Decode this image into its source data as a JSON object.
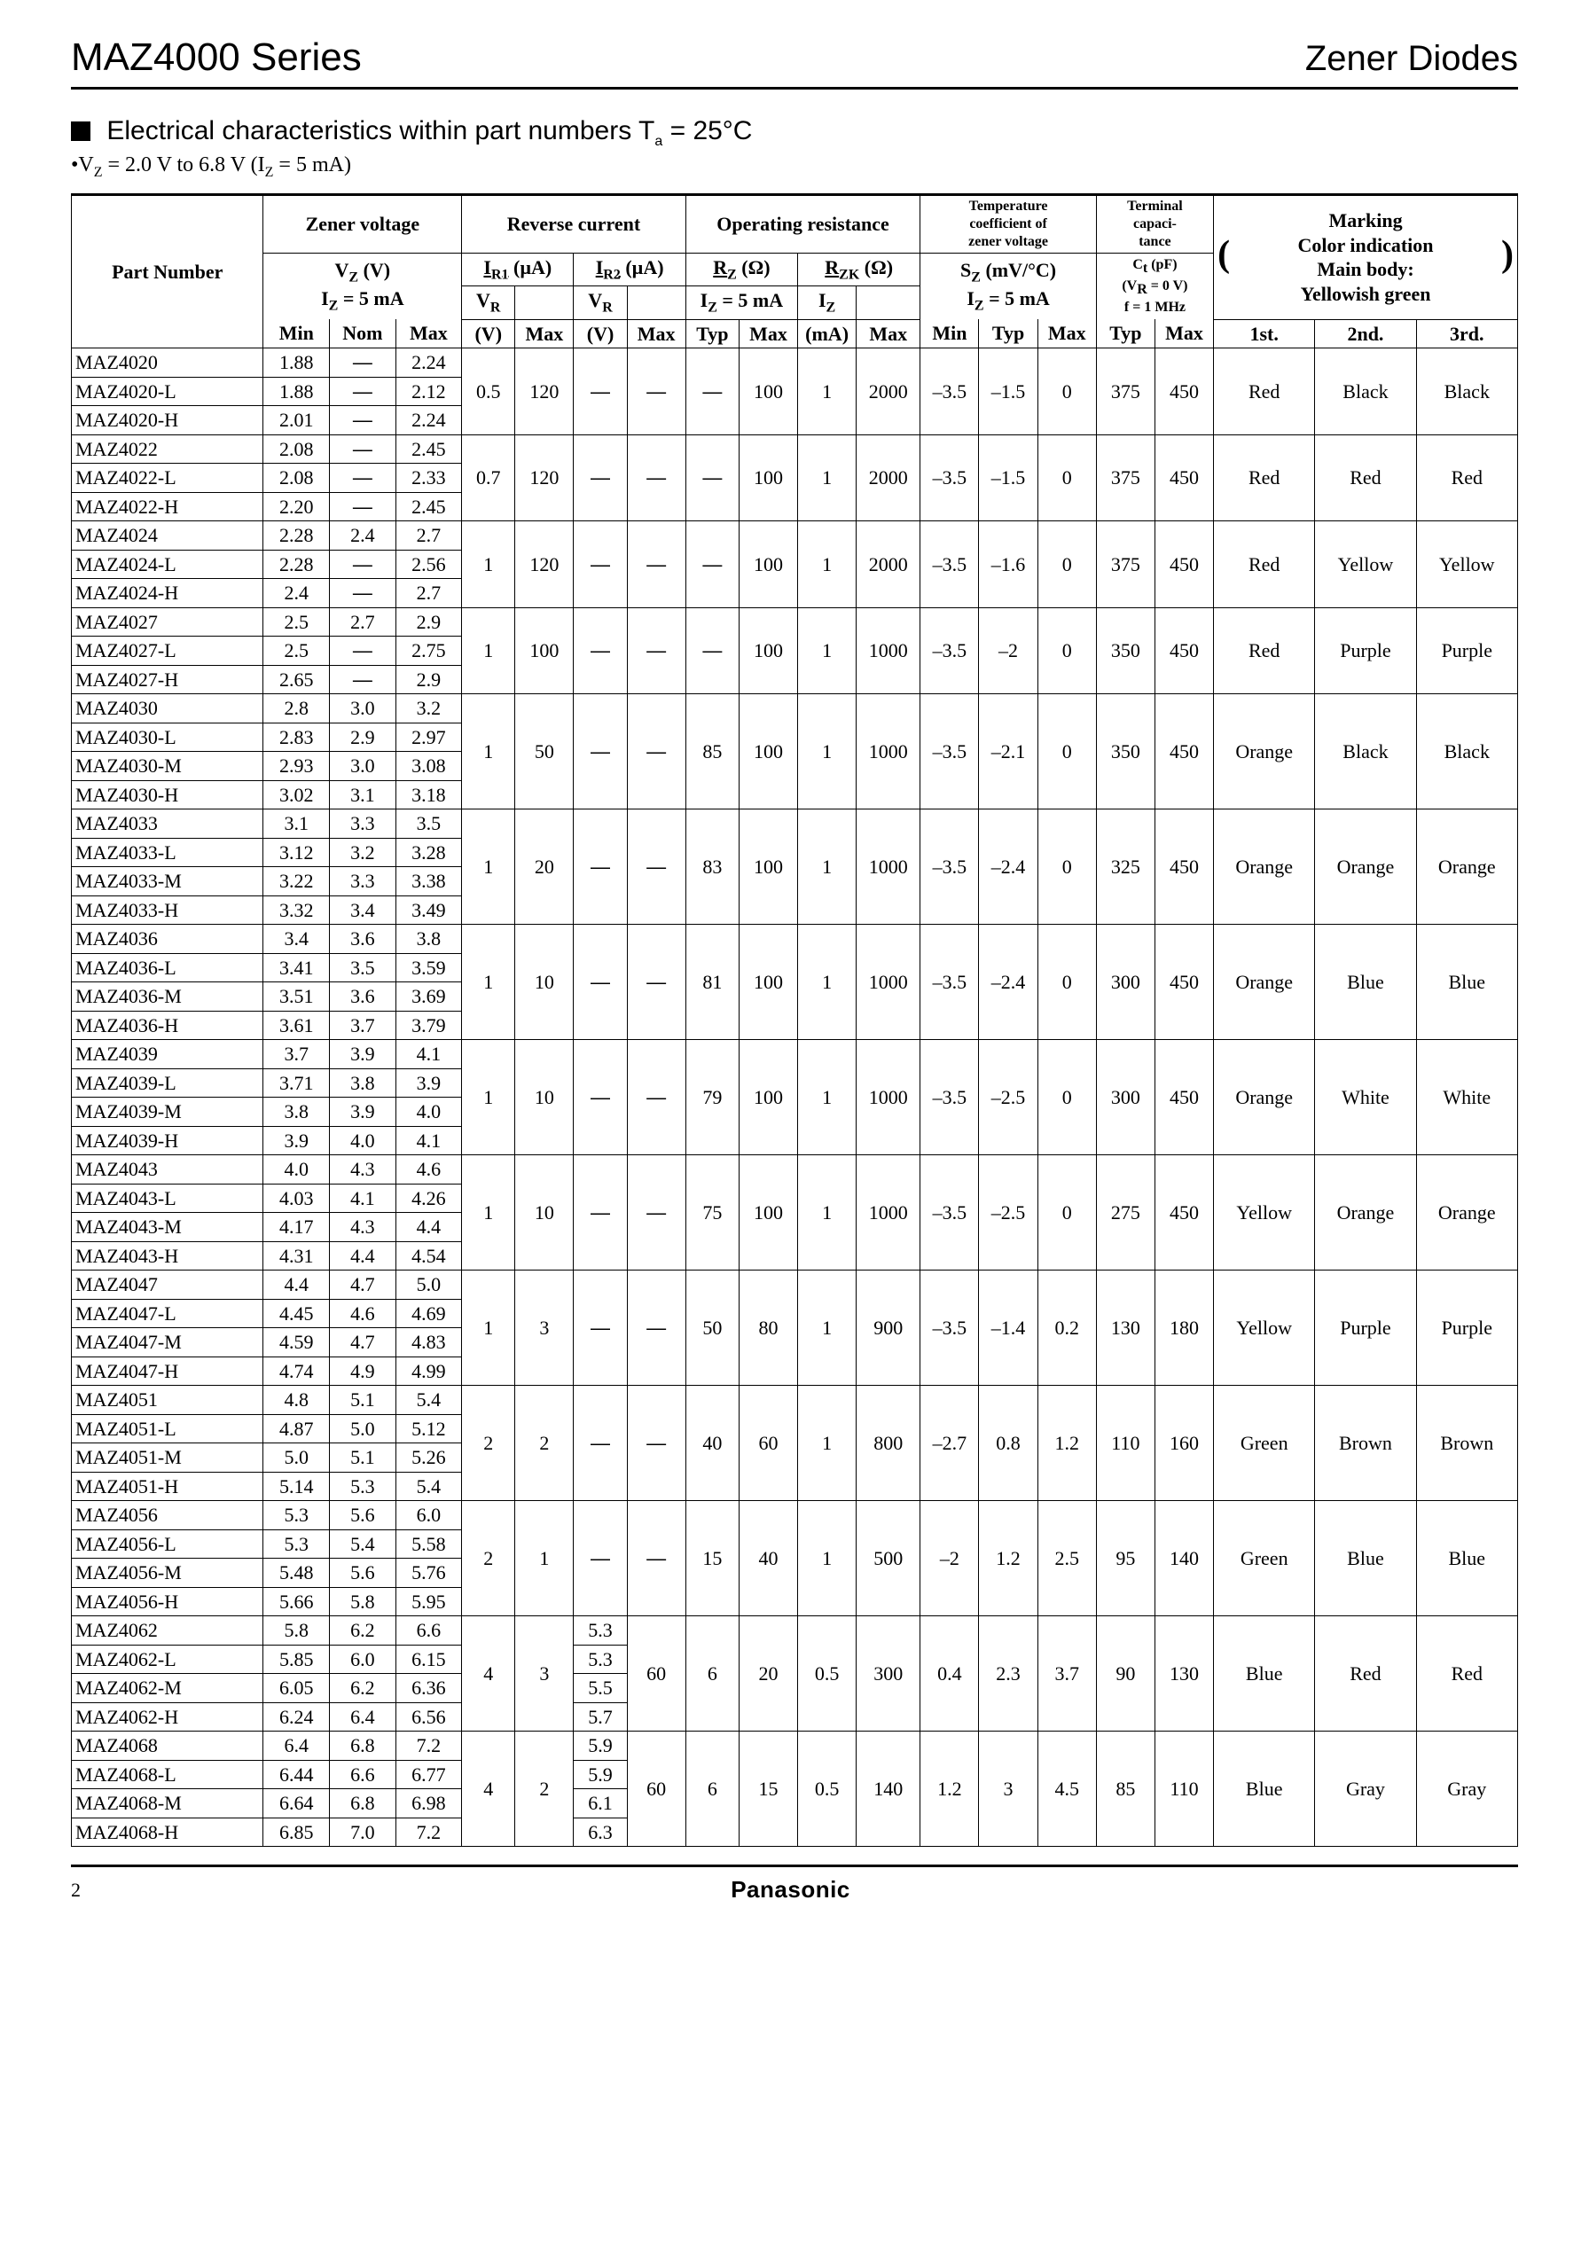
{
  "header": {
    "series": "MAZ4000 Series",
    "category": "Zener Diodes"
  },
  "section": {
    "title_prefix": "Electrical characteristics within part numbers  ",
    "title_temp": "T",
    "title_temp_sub": "a",
    "title_temp_eq": " = 25°C",
    "subnote": "•V",
    "subnote_sub1": "Z",
    "subnote_mid": " = 2.0 V to 6.8 V (I",
    "subnote_sub2": "Z",
    "subnote_end": " = 5 mA)"
  },
  "table": {
    "hdr": {
      "part_number": "Part Number",
      "zener_voltage": "Zener voltage",
      "reverse_current": "Reverse current",
      "operating_resistance": "Operating resistance",
      "temp_coef": "Temperature coefficient of zener voltage",
      "terminal_cap": "Terminal capaci- tance",
      "marking": "Marking",
      "marking_sub1": "Color indication",
      "marking_sub2": "Main body:",
      "marking_sub3": "Yellowish green",
      "vz": "V",
      "vz_sub": "Z",
      "vz_unit": " (V)",
      "iz5": "I",
      "iz5_sub": "Z",
      "iz5_rest": " = 5 mA",
      "ir1": "I",
      "ir1_sub": "R1",
      "ir1_unit": " (µA)",
      "ir2": "I",
      "ir2_sub": "R2",
      "ir2_unit": " (µA)",
      "vr": "V",
      "vr_sub": "R",
      "rz": "R",
      "rz_sub": "Z",
      "rz_unit": " (Ω)",
      "rzk": "R",
      "rzk_sub": "ZK",
      "rzk_unit": " (Ω)",
      "iz": "I",
      "iz_sub": "Z",
      "sz": "S",
      "sz_sub": "Z",
      "sz_unit": " (mV/°C)",
      "ct": "C",
      "ct_sub": "t",
      "ct_unit": " (pF)",
      "ct_cond1": "(V",
      "ct_cond1_sub": "R",
      "ct_cond1_end": " = 0 V)",
      "ct_cond2": "f = 1 MHz",
      "min": "Min",
      "nom": "Nom",
      "max": "Max",
      "v": "(V)",
      "typ": "Typ",
      "ma": "(mA)",
      "first": "1st.",
      "second": "2nd.",
      "third": "3rd."
    },
    "groups": [
      {
        "rows": [
          {
            "pn": "MAZ4020",
            "min": "1.88",
            "nom": "—",
            "max": "2.24"
          },
          {
            "pn": "MAZ4020-L",
            "min": "1.88",
            "nom": "—",
            "max": "2.12"
          },
          {
            "pn": "MAZ4020-H",
            "min": "2.01",
            "nom": "—",
            "max": "2.24"
          }
        ],
        "ir1_vr": "0.5",
        "ir1_max": "120",
        "ir2_vr": "—",
        "ir2_max": "—",
        "rz_typ": "—",
        "rz_max": "100",
        "rzk_iz": "1",
        "rzk_max": "2000",
        "sz_min": "–3.5",
        "sz_typ": "–1.5",
        "sz_max": "0",
        "ct_typ": "375",
        "ct_max": "450",
        "c1": "Red",
        "c2": "Black",
        "c3": "Black"
      },
      {
        "rows": [
          {
            "pn": "MAZ4022",
            "min": "2.08",
            "nom": "—",
            "max": "2.45"
          },
          {
            "pn": "MAZ4022-L",
            "min": "2.08",
            "nom": "—",
            "max": "2.33"
          },
          {
            "pn": "MAZ4022-H",
            "min": "2.20",
            "nom": "—",
            "max": "2.45"
          }
        ],
        "ir1_vr": "0.7",
        "ir1_max": "120",
        "ir2_vr": "—",
        "ir2_max": "—",
        "rz_typ": "—",
        "rz_max": "100",
        "rzk_iz": "1",
        "rzk_max": "2000",
        "sz_min": "–3.5",
        "sz_typ": "–1.5",
        "sz_max": "0",
        "ct_typ": "375",
        "ct_max": "450",
        "c1": "Red",
        "c2": "Red",
        "c3": "Red"
      },
      {
        "rows": [
          {
            "pn": "MAZ4024",
            "min": "2.28",
            "nom": "2.4",
            "max": "2.7"
          },
          {
            "pn": "MAZ4024-L",
            "min": "2.28",
            "nom": "—",
            "max": "2.56"
          },
          {
            "pn": "MAZ4024-H",
            "min": "2.4",
            "nom": "—",
            "max": "2.7"
          }
        ],
        "ir1_vr": "1",
        "ir1_max": "120",
        "ir2_vr": "—",
        "ir2_max": "—",
        "rz_typ": "—",
        "rz_max": "100",
        "rzk_iz": "1",
        "rzk_max": "2000",
        "sz_min": "–3.5",
        "sz_typ": "–1.6",
        "sz_max": "0",
        "ct_typ": "375",
        "ct_max": "450",
        "c1": "Red",
        "c2": "Yellow",
        "c3": "Yellow"
      },
      {
        "rows": [
          {
            "pn": "MAZ4027",
            "min": "2.5",
            "nom": "2.7",
            "max": "2.9"
          },
          {
            "pn": "MAZ4027-L",
            "min": "2.5",
            "nom": "—",
            "max": "2.75"
          },
          {
            "pn": "MAZ4027-H",
            "min": "2.65",
            "nom": "—",
            "max": "2.9"
          }
        ],
        "ir1_vr": "1",
        "ir1_max": "100",
        "ir2_vr": "—",
        "ir2_max": "—",
        "rz_typ": "—",
        "rz_max": "100",
        "rzk_iz": "1",
        "rzk_max": "1000",
        "sz_min": "–3.5",
        "sz_typ": "–2",
        "sz_max": "0",
        "ct_typ": "350",
        "ct_max": "450",
        "c1": "Red",
        "c2": "Purple",
        "c3": "Purple"
      },
      {
        "rows": [
          {
            "pn": "MAZ4030",
            "min": "2.8",
            "nom": "3.0",
            "max": "3.2"
          },
          {
            "pn": "MAZ4030-L",
            "min": "2.83",
            "nom": "2.9",
            "max": "2.97"
          },
          {
            "pn": "MAZ4030-M",
            "min": "2.93",
            "nom": "3.0",
            "max": "3.08"
          },
          {
            "pn": "MAZ4030-H",
            "min": "3.02",
            "nom": "3.1",
            "max": "3.18"
          }
        ],
        "ir1_vr": "1",
        "ir1_max": "50",
        "ir2_vr": "—",
        "ir2_max": "—",
        "rz_typ": "85",
        "rz_max": "100",
        "rzk_iz": "1",
        "rzk_max": "1000",
        "sz_min": "–3.5",
        "sz_typ": "–2.1",
        "sz_max": "0",
        "ct_typ": "350",
        "ct_max": "450",
        "c1": "Orange",
        "c2": "Black",
        "c3": "Black"
      },
      {
        "rows": [
          {
            "pn": "MAZ4033",
            "min": "3.1",
            "nom": "3.3",
            "max": "3.5"
          },
          {
            "pn": "MAZ4033-L",
            "min": "3.12",
            "nom": "3.2",
            "max": "3.28"
          },
          {
            "pn": "MAZ4033-M",
            "min": "3.22",
            "nom": "3.3",
            "max": "3.38"
          },
          {
            "pn": "MAZ4033-H",
            "min": "3.32",
            "nom": "3.4",
            "max": "3.49"
          }
        ],
        "ir1_vr": "1",
        "ir1_max": "20",
        "ir2_vr": "—",
        "ir2_max": "—",
        "rz_typ": "83",
        "rz_max": "100",
        "rzk_iz": "1",
        "rzk_max": "1000",
        "sz_min": "–3.5",
        "sz_typ": "–2.4",
        "sz_max": "0",
        "ct_typ": "325",
        "ct_max": "450",
        "c1": "Orange",
        "c2": "Orange",
        "c3": "Orange"
      },
      {
        "rows": [
          {
            "pn": "MAZ4036",
            "min": "3.4",
            "nom": "3.6",
            "max": "3.8"
          },
          {
            "pn": "MAZ4036-L",
            "min": "3.41",
            "nom": "3.5",
            "max": "3.59"
          },
          {
            "pn": "MAZ4036-M",
            "min": "3.51",
            "nom": "3.6",
            "max": "3.69"
          },
          {
            "pn": "MAZ4036-H",
            "min": "3.61",
            "nom": "3.7",
            "max": "3.79"
          }
        ],
        "ir1_vr": "1",
        "ir1_max": "10",
        "ir2_vr": "—",
        "ir2_max": "—",
        "rz_typ": "81",
        "rz_max": "100",
        "rzk_iz": "1",
        "rzk_max": "1000",
        "sz_min": "–3.5",
        "sz_typ": "–2.4",
        "sz_max": "0",
        "ct_typ": "300",
        "ct_max": "450",
        "c1": "Orange",
        "c2": "Blue",
        "c3": "Blue"
      },
      {
        "rows": [
          {
            "pn": "MAZ4039",
            "min": "3.7",
            "nom": "3.9",
            "max": "4.1"
          },
          {
            "pn": "MAZ4039-L",
            "min": "3.71",
            "nom": "3.8",
            "max": "3.9"
          },
          {
            "pn": "MAZ4039-M",
            "min": "3.8",
            "nom": "3.9",
            "max": "4.0"
          },
          {
            "pn": "MAZ4039-H",
            "min": "3.9",
            "nom": "4.0",
            "max": "4.1"
          }
        ],
        "ir1_vr": "1",
        "ir1_max": "10",
        "ir2_vr": "—",
        "ir2_max": "—",
        "rz_typ": "79",
        "rz_max": "100",
        "rzk_iz": "1",
        "rzk_max": "1000",
        "sz_min": "–3.5",
        "sz_typ": "–2.5",
        "sz_max": "0",
        "ct_typ": "300",
        "ct_max": "450",
        "c1": "Orange",
        "c2": "White",
        "c3": "White"
      },
      {
        "rows": [
          {
            "pn": "MAZ4043",
            "min": "4.0",
            "nom": "4.3",
            "max": "4.6"
          },
          {
            "pn": "MAZ4043-L",
            "min": "4.03",
            "nom": "4.1",
            "max": "4.26"
          },
          {
            "pn": "MAZ4043-M",
            "min": "4.17",
            "nom": "4.3",
            "max": "4.4"
          },
          {
            "pn": "MAZ4043-H",
            "min": "4.31",
            "nom": "4.4",
            "max": "4.54"
          }
        ],
        "ir1_vr": "1",
        "ir1_max": "10",
        "ir2_vr": "—",
        "ir2_max": "—",
        "rz_typ": "75",
        "rz_max": "100",
        "rzk_iz": "1",
        "rzk_max": "1000",
        "sz_min": "–3.5",
        "sz_typ": "–2.5",
        "sz_max": "0",
        "ct_typ": "275",
        "ct_max": "450",
        "c1": "Yellow",
        "c2": "Orange",
        "c3": "Orange"
      },
      {
        "rows": [
          {
            "pn": "MAZ4047",
            "min": "4.4",
            "nom": "4.7",
            "max": "5.0"
          },
          {
            "pn": "MAZ4047-L",
            "min": "4.45",
            "nom": "4.6",
            "max": "4.69"
          },
          {
            "pn": "MAZ4047-M",
            "min": "4.59",
            "nom": "4.7",
            "max": "4.83"
          },
          {
            "pn": "MAZ4047-H",
            "min": "4.74",
            "nom": "4.9",
            "max": "4.99"
          }
        ],
        "ir1_vr": "1",
        "ir1_max": "3",
        "ir2_vr": "—",
        "ir2_max": "—",
        "rz_typ": "50",
        "rz_max": "80",
        "rzk_iz": "1",
        "rzk_max": "900",
        "sz_min": "–3.5",
        "sz_typ": "–1.4",
        "sz_max": "0.2",
        "ct_typ": "130",
        "ct_max": "180",
        "c1": "Yellow",
        "c2": "Purple",
        "c3": "Purple"
      },
      {
        "rows": [
          {
            "pn": "MAZ4051",
            "min": "4.8",
            "nom": "5.1",
            "max": "5.4"
          },
          {
            "pn": "MAZ4051-L",
            "min": "4.87",
            "nom": "5.0",
            "max": "5.12"
          },
          {
            "pn": "MAZ4051-M",
            "min": "5.0",
            "nom": "5.1",
            "max": "5.26"
          },
          {
            "pn": "MAZ4051-H",
            "min": "5.14",
            "nom": "5.3",
            "max": "5.4"
          }
        ],
        "ir1_vr": "2",
        "ir1_max": "2",
        "ir2_vr": "—",
        "ir2_max": "—",
        "rz_typ": "40",
        "rz_max": "60",
        "rzk_iz": "1",
        "rzk_max": "800",
        "sz_min": "–2.7",
        "sz_typ": "0.8",
        "sz_max": "1.2",
        "ct_typ": "110",
        "ct_max": "160",
        "c1": "Green",
        "c2": "Brown",
        "c3": "Brown"
      },
      {
        "rows": [
          {
            "pn": "MAZ4056",
            "min": "5.3",
            "nom": "5.6",
            "max": "6.0"
          },
          {
            "pn": "MAZ4056-L",
            "min": "5.3",
            "nom": "5.4",
            "max": "5.58"
          },
          {
            "pn": "MAZ4056-M",
            "min": "5.48",
            "nom": "5.6",
            "max": "5.76"
          },
          {
            "pn": "MAZ4056-H",
            "min": "5.66",
            "nom": "5.8",
            "max": "5.95"
          }
        ],
        "ir1_vr": "2",
        "ir1_max": "1",
        "ir2_vr": "—",
        "ir2_max": "—",
        "rz_typ": "15",
        "rz_max": "40",
        "rzk_iz": "1",
        "rzk_max": "500",
        "sz_min": "–2",
        "sz_typ": "1.2",
        "sz_max": "2.5",
        "ct_typ": "95",
        "ct_max": "140",
        "c1": "Green",
        "c2": "Blue",
        "c3": "Blue"
      },
      {
        "rows": [
          {
            "pn": "MAZ4062",
            "min": "5.8",
            "nom": "6.2",
            "max": "6.6",
            "ir2vr": "5.3"
          },
          {
            "pn": "MAZ4062-L",
            "min": "5.85",
            "nom": "6.0",
            "max": "6.15",
            "ir2vr": "5.3"
          },
          {
            "pn": "MAZ4062-M",
            "min": "6.05",
            "nom": "6.2",
            "max": "6.36",
            "ir2vr": "5.5"
          },
          {
            "pn": "MAZ4062-H",
            "min": "6.24",
            "nom": "6.4",
            "max": "6.56",
            "ir2vr": "5.7"
          }
        ],
        "ir1_vr": "4",
        "ir1_max": "3",
        "ir2_vr": "per-row",
        "ir2_max": "60",
        "rz_typ": "6",
        "rz_max": "20",
        "rzk_iz": "0.5",
        "rzk_max": "300",
        "sz_min": "0.4",
        "sz_typ": "2.3",
        "sz_max": "3.7",
        "ct_typ": "90",
        "ct_max": "130",
        "c1": "Blue",
        "c2": "Red",
        "c3": "Red"
      },
      {
        "rows": [
          {
            "pn": "MAZ4068",
            "min": "6.4",
            "nom": "6.8",
            "max": "7.2",
            "ir2vr": "5.9"
          },
          {
            "pn": "MAZ4068-L",
            "min": "6.44",
            "nom": "6.6",
            "max": "6.77",
            "ir2vr": "5.9"
          },
          {
            "pn": "MAZ4068-M",
            "min": "6.64",
            "nom": "6.8",
            "max": "6.98",
            "ir2vr": "6.1"
          },
          {
            "pn": "MAZ4068-H",
            "min": "6.85",
            "nom": "7.0",
            "max": "7.2",
            "ir2vr": "6.3"
          }
        ],
        "ir1_vr": "4",
        "ir1_max": "2",
        "ir2_vr": "per-row",
        "ir2_max": "60",
        "rz_typ": "6",
        "rz_max": "15",
        "rzk_iz": "0.5",
        "rzk_max": "140",
        "sz_min": "1.2",
        "sz_typ": "3",
        "sz_max": "4.5",
        "ct_typ": "85",
        "ct_max": "110",
        "c1": "Blue",
        "c2": "Gray",
        "c3": "Gray"
      }
    ]
  },
  "footer": {
    "page": "2",
    "brand": "Panasonic"
  }
}
